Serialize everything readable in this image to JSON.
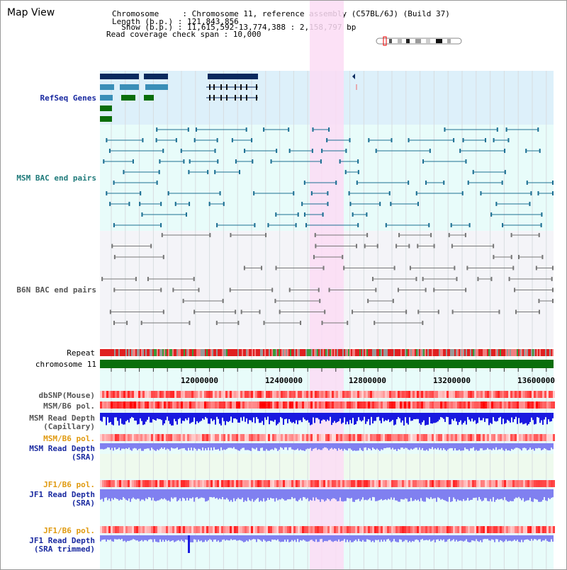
{
  "title": "Map View",
  "header": {
    "chromosome_line": "Chromosome     : Chromosome 11, reference assembly (C57BL/6J) (Build 37)",
    "length_line": "Length (b.p.) : 121,843,856",
    "show_line": "  Show (b.p.) : 11,615,592-13,774,388 : 2,158,797 bp",
    "coverage_line": "Read coverage check span : 10,000"
  },
  "tracks": {
    "refseq": "RefSeq Genes",
    "msm_bac": "MSM BAC end pairs",
    "b6n_bac": "B6N BAC end pairs",
    "repeat": "Repeat",
    "chromosome": "chromosome 11",
    "dbsnp": "dbSNP(Mouse)",
    "msm_b6_pol_1": "MSM/B6 pol.",
    "msm_depth_cap": "MSM Read Depth\n(Capillary)",
    "msm_b6_pol_2": "MSM/B6 pol.",
    "msm_depth_sra": "MSM Read Depth\n(SRA)",
    "jf1_b6_pol_1": "JF1/B6 pol.",
    "jf1_depth_sra": "JF1 Read Depth\n(SRA)",
    "jf1_b6_pol_2": "JF1/B6 pol.",
    "jf1_depth_trim": "JF1 Read Depth\n(SRA trimmed)"
  },
  "axis_ticks": [
    "12000000",
    "12400000",
    "12800000",
    "13200000",
    "13600000"
  ],
  "colors": {
    "highlight": "#fbdcf5",
    "refseq_bg": "#ddf0fa",
    "msm_bg": "#e8fcfa",
    "b6n_bg": "#f4f4f8",
    "navy": "#0a2a5e",
    "teal": "#3a8fb8",
    "green": "#0b6e0b",
    "msm_feature": "#1c6f93",
    "b6n_feature": "#777777",
    "blue_label": "#1a2aa0",
    "teal_label": "#1f7a7a",
    "orange_label": "#e09a10",
    "depth_blue": "#1a1ae0",
    "depth_light": "#8080f0"
  }
}
